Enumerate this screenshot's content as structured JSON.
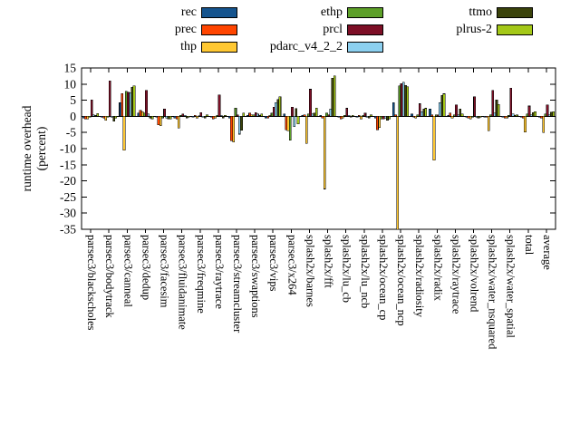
{
  "legend": {
    "columns": [
      [
        {
          "label": "rec",
          "color": "#15548e"
        },
        {
          "label": "prec",
          "color": "#ff4500"
        },
        {
          "label": "thp",
          "color": "#ffc832"
        }
      ],
      [
        {
          "label": "ethp",
          "color": "#5da028"
        },
        {
          "label": "prcl",
          "color": "#7d0f26"
        },
        {
          "label": "pdarc_v4_2_2",
          "color": "#8cd0f0"
        }
      ],
      [
        {
          "label": "ttmo",
          "color": "#3b430b"
        },
        {
          "label": "plrus-2",
          "color": "#a4c818"
        }
      ]
    ]
  },
  "y_axis": {
    "title_line1": "runtime overhead",
    "title_line2": "(percent)",
    "ticks": [
      15,
      10,
      5,
      0,
      -5,
      -10,
      -15,
      -20,
      -25,
      -30,
      -35
    ],
    "min": -35,
    "max": 15
  },
  "chart_data": {
    "type": "bar",
    "title": "",
    "ylabel": "runtime overhead (percent)",
    "ylim": [
      -35,
      15
    ],
    "grid": false,
    "legend_position": "top-center",
    "categories": [
      "parsec3/blackscholes",
      "parsec3/bodytrack",
      "parsec3/canneal",
      "parsec3/dedup",
      "parsec3/facesim",
      "parsec3/fluidanimate",
      "parsec3/freqmine",
      "parsec3/raytrace",
      "parsec3/streamcluster",
      "parsec3/swaptions",
      "parsec3/vips",
      "parsec3/x264",
      "splash2x/barnes",
      "splash2x/fft",
      "splash2x/lu_cb",
      "splash2x/lu_ncb",
      "splash2x/ocean_cp",
      "splash2x/ocean_ncp",
      "splash2x/radiosity",
      "splash2x/radix",
      "splash2x/raytrace",
      "splash2x/volrend",
      "splash2x/water_nsquared",
      "splash2x/water_spatial",
      "total",
      "average"
    ],
    "series": [
      {
        "name": "rec",
        "color": "#15548e",
        "values": [
          -0.5,
          -0.3,
          4.3,
          1.0,
          -0.3,
          -0.5,
          -0.2,
          -0.3,
          -0.5,
          0.3,
          -0.5,
          0.8,
          0.3,
          0.3,
          -0.3,
          -0.3,
          -0.5,
          4.2,
          0.8,
          2.3,
          0.3,
          -0.3,
          -0.3,
          -0.3,
          -0.3,
          -0.3
        ]
      },
      {
        "name": "prec",
        "color": "#ff4500",
        "values": [
          -0.8,
          -0.5,
          7.1,
          1.9,
          -2.6,
          -0.8,
          0.3,
          -0.8,
          -7.5,
          1.0,
          -0.5,
          -4.2,
          0.5,
          -0.5,
          -0.8,
          0.3,
          -4.2,
          0.5,
          -0.3,
          0.5,
          1.0,
          -0.5,
          -0.3,
          -0.5,
          -0.5,
          -0.5
        ]
      },
      {
        "name": "thp",
        "color": "#ffc832",
        "values": [
          -0.8,
          -1.2,
          -10.5,
          1.5,
          -2.9,
          -3.6,
          -0.5,
          -0.5,
          -8.0,
          0.5,
          0.3,
          -4.5,
          -8.4,
          -22.5,
          -0.5,
          -0.8,
          -3.5,
          -36.5,
          -0.5,
          -13.6,
          -0.5,
          -0.8,
          -4.5,
          -0.5,
          -4.9,
          -5.0
        ]
      },
      {
        "name": "ethp",
        "color": "#5da028",
        "values": [
          -0.3,
          -0.3,
          7.8,
          1.0,
          -0.5,
          0.3,
          0.2,
          0.3,
          2.6,
          0.5,
          1.0,
          -7.4,
          0.8,
          1.0,
          0.3,
          0.3,
          -0.8,
          9.4,
          0.5,
          0.5,
          0.5,
          -0.3,
          0.5,
          0.3,
          0.8,
          0.8
        ]
      },
      {
        "name": "prcl",
        "color": "#7d0f26",
        "values": [
          5.1,
          11.0,
          7.5,
          8.0,
          2.3,
          0.7,
          1.2,
          6.6,
          0.5,
          1.2,
          2.8,
          2.8,
          8.4,
          0.5,
          2.5,
          1.0,
          -0.8,
          10.2,
          3.9,
          0.5,
          3.5,
          6.1,
          8.1,
          8.8,
          3.2,
          3.6
        ]
      },
      {
        "name": "pdarc_v4_2_2",
        "color": "#8cd0f0",
        "values": [
          0.5,
          -0.3,
          7.4,
          0.8,
          -0.5,
          0.3,
          -0.3,
          0.3,
          -5.5,
          0.8,
          4.2,
          -3.2,
          0.8,
          2.3,
          0.3,
          -0.3,
          -0.5,
          10.6,
          1.5,
          4.2,
          0.5,
          -0.3,
          1.0,
          0.8,
          0.5,
          0.5
        ]
      },
      {
        "name": "ttmo",
        "color": "#3b430b",
        "values": [
          0.3,
          -1.5,
          9.0,
          -0.5,
          -0.8,
          -0.5,
          -0.5,
          -0.5,
          -4.3,
          0.3,
          5.2,
          2.4,
          1.0,
          11.9,
          -0.3,
          -0.5,
          -1.2,
          9.6,
          2.3,
          6.5,
          2.3,
          -0.5,
          5.1,
          0.3,
          1.2,
          1.3
        ]
      },
      {
        "name": "plrus-2",
        "color": "#a4c818",
        "values": [
          0.9,
          -0.5,
          9.5,
          -0.8,
          -0.8,
          -0.3,
          0.5,
          0.3,
          1.0,
          0.8,
          6.1,
          -2.3,
          2.6,
          12.5,
          0.3,
          0.5,
          -0.8,
          9.2,
          2.5,
          7.0,
          0.8,
          -0.3,
          3.7,
          0.5,
          1.5,
          1.5
        ]
      }
    ]
  }
}
